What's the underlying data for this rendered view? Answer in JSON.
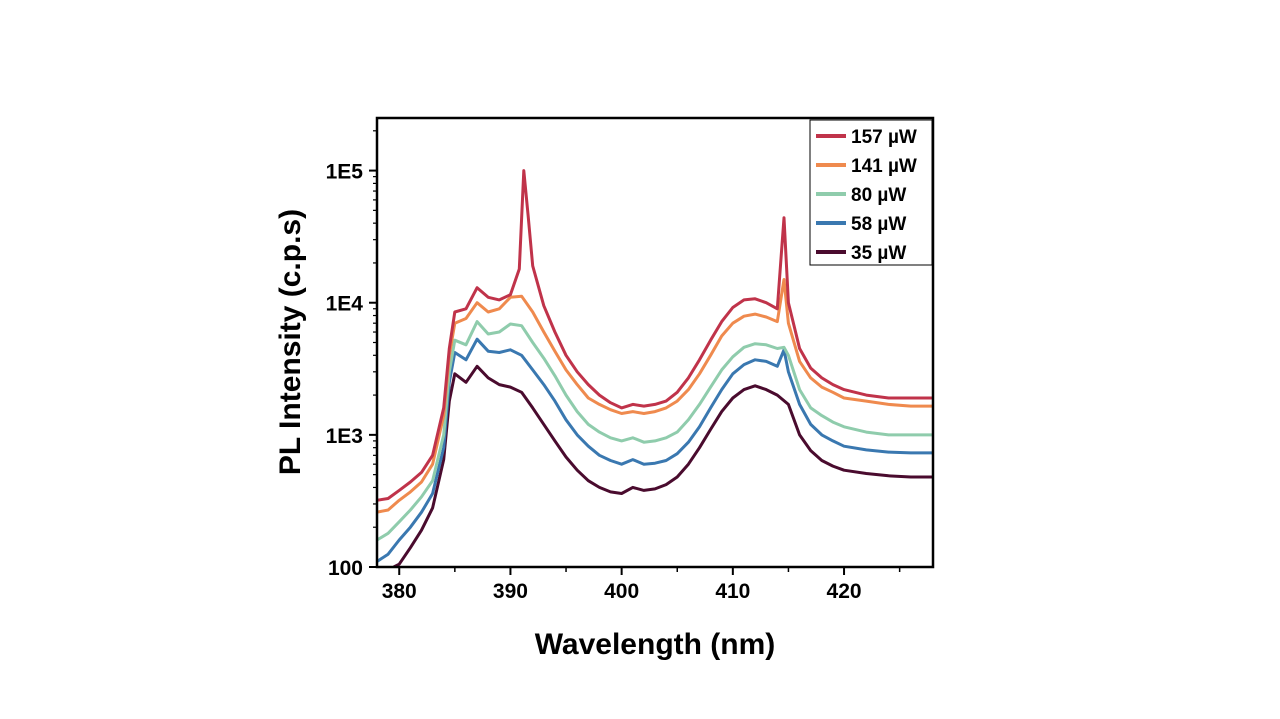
{
  "chart_data": {
    "type": "line",
    "title": "",
    "xlabel": "Wavelength (nm)",
    "ylabel": "PL Intensity (c.p.s)",
    "xlim": [
      378,
      428
    ],
    "ylim": [
      100,
      250000
    ],
    "yscale": "log",
    "grid": false,
    "legend_position": "top-right",
    "x_ticks": [
      380,
      390,
      400,
      410,
      420
    ],
    "x_tick_labels": [
      "380",
      "390",
      "400",
      "410",
      "420"
    ],
    "y_ticks": [
      100,
      1000,
      10000,
      100000
    ],
    "y_tick_labels": [
      "100",
      "1E3",
      "1E4",
      "1E5"
    ],
    "series": [
      {
        "name": "157 µW",
        "color": "#c0334a",
        "points": [
          [
            378,
            320
          ],
          [
            379,
            330
          ],
          [
            380,
            380
          ],
          [
            381,
            440
          ],
          [
            382,
            520
          ],
          [
            383,
            700
          ],
          [
            384,
            1600
          ],
          [
            384.5,
            4500
          ],
          [
            385,
            8500
          ],
          [
            386,
            9000
          ],
          [
            387,
            13000
          ],
          [
            388,
            11000
          ],
          [
            389,
            10500
          ],
          [
            390,
            11500
          ],
          [
            390.8,
            18000
          ],
          [
            391.2,
            100000
          ],
          [
            391.6,
            45000
          ],
          [
            392,
            19000
          ],
          [
            393,
            9500
          ],
          [
            394,
            6000
          ],
          [
            395,
            4000
          ],
          [
            396,
            3000
          ],
          [
            397,
            2400
          ],
          [
            398,
            2000
          ],
          [
            399,
            1750
          ],
          [
            400,
            1600
          ],
          [
            401,
            1700
          ],
          [
            402,
            1650
          ],
          [
            403,
            1700
          ],
          [
            404,
            1800
          ],
          [
            405,
            2100
          ],
          [
            406,
            2700
          ],
          [
            407,
            3700
          ],
          [
            408,
            5200
          ],
          [
            409,
            7200
          ],
          [
            410,
            9200
          ],
          [
            411,
            10500
          ],
          [
            412,
            10700
          ],
          [
            413,
            10000
          ],
          [
            414,
            9000
          ],
          [
            414.6,
            44000
          ],
          [
            415,
            10000
          ],
          [
            416,
            4500
          ],
          [
            417,
            3200
          ],
          [
            418,
            2700
          ],
          [
            419,
            2400
          ],
          [
            420,
            2200
          ],
          [
            422,
            2000
          ],
          [
            424,
            1900
          ],
          [
            426,
            1900
          ],
          [
            428,
            1900
          ]
        ]
      },
      {
        "name": "141 µW",
        "color": "#ef8a4e",
        "points": [
          [
            378,
            260
          ],
          [
            379,
            270
          ],
          [
            380,
            320
          ],
          [
            381,
            370
          ],
          [
            382,
            440
          ],
          [
            383,
            600
          ],
          [
            384,
            1400
          ],
          [
            384.5,
            4000
          ],
          [
            385,
            7000
          ],
          [
            386,
            7600
          ],
          [
            387,
            10000
          ],
          [
            388,
            8500
          ],
          [
            389,
            9000
          ],
          [
            390,
            11000
          ],
          [
            391,
            11200
          ],
          [
            392,
            8500
          ],
          [
            393,
            6000
          ],
          [
            394,
            4300
          ],
          [
            395,
            3100
          ],
          [
            396,
            2400
          ],
          [
            397,
            1900
          ],
          [
            398,
            1700
          ],
          [
            399,
            1550
          ],
          [
            400,
            1450
          ],
          [
            401,
            1500
          ],
          [
            402,
            1450
          ],
          [
            403,
            1500
          ],
          [
            404,
            1600
          ],
          [
            405,
            1800
          ],
          [
            406,
            2200
          ],
          [
            407,
            2900
          ],
          [
            408,
            4000
          ],
          [
            409,
            5600
          ],
          [
            410,
            7000
          ],
          [
            411,
            7900
          ],
          [
            412,
            8200
          ],
          [
            413,
            7800
          ],
          [
            414,
            7200
          ],
          [
            414.6,
            15000
          ],
          [
            415,
            7000
          ],
          [
            416,
            3600
          ],
          [
            417,
            2700
          ],
          [
            418,
            2300
          ],
          [
            419,
            2100
          ],
          [
            420,
            1900
          ],
          [
            422,
            1800
          ],
          [
            424,
            1700
          ],
          [
            426,
            1650
          ],
          [
            428,
            1650
          ]
        ]
      },
      {
        "name": "80 µW",
        "color": "#8fccac",
        "points": [
          [
            378,
            160
          ],
          [
            379,
            180
          ],
          [
            380,
            220
          ],
          [
            381,
            270
          ],
          [
            382,
            340
          ],
          [
            383,
            450
          ],
          [
            384,
            1000
          ],
          [
            384.5,
            3000
          ],
          [
            385,
            5200
          ],
          [
            386,
            4800
          ],
          [
            387,
            7200
          ],
          [
            388,
            5800
          ],
          [
            389,
            6000
          ],
          [
            390,
            6900
          ],
          [
            391,
            6700
          ],
          [
            392,
            5000
          ],
          [
            393,
            3800
          ],
          [
            394,
            2800
          ],
          [
            395,
            2000
          ],
          [
            396,
            1500
          ],
          [
            397,
            1200
          ],
          [
            398,
            1050
          ],
          [
            399,
            950
          ],
          [
            400,
            900
          ],
          [
            401,
            950
          ],
          [
            402,
            880
          ],
          [
            403,
            900
          ],
          [
            404,
            950
          ],
          [
            405,
            1050
          ],
          [
            406,
            1300
          ],
          [
            407,
            1700
          ],
          [
            408,
            2300
          ],
          [
            409,
            3100
          ],
          [
            410,
            3900
          ],
          [
            411,
            4600
          ],
          [
            412,
            4900
          ],
          [
            413,
            4800
          ],
          [
            414,
            4500
          ],
          [
            414.6,
            4600
          ],
          [
            415,
            4000
          ],
          [
            416,
            2200
          ],
          [
            417,
            1600
          ],
          [
            418,
            1400
          ],
          [
            419,
            1250
          ],
          [
            420,
            1150
          ],
          [
            422,
            1050
          ],
          [
            424,
            1000
          ],
          [
            426,
            1000
          ],
          [
            428,
            1000
          ]
        ]
      },
      {
        "name": "58 µW",
        "color": "#3a78b0",
        "points": [
          [
            378,
            110
          ],
          [
            379,
            125
          ],
          [
            380,
            160
          ],
          [
            381,
            200
          ],
          [
            382,
            260
          ],
          [
            383,
            360
          ],
          [
            384,
            800
          ],
          [
            384.5,
            2500
          ],
          [
            385,
            4200
          ],
          [
            386,
            3700
          ],
          [
            387,
            5300
          ],
          [
            388,
            4300
          ],
          [
            389,
            4200
          ],
          [
            390,
            4400
          ],
          [
            391,
            4000
          ],
          [
            392,
            3100
          ],
          [
            393,
            2400
          ],
          [
            394,
            1800
          ],
          [
            395,
            1300
          ],
          [
            396,
            1000
          ],
          [
            397,
            820
          ],
          [
            398,
            700
          ],
          [
            399,
            640
          ],
          [
            400,
            600
          ],
          [
            401,
            650
          ],
          [
            402,
            600
          ],
          [
            403,
            610
          ],
          [
            404,
            640
          ],
          [
            405,
            720
          ],
          [
            406,
            880
          ],
          [
            407,
            1150
          ],
          [
            408,
            1600
          ],
          [
            409,
            2200
          ],
          [
            410,
            2900
          ],
          [
            411,
            3400
          ],
          [
            412,
            3700
          ],
          [
            413,
            3600
          ],
          [
            414,
            3300
          ],
          [
            414.6,
            4400
          ],
          [
            415,
            3000
          ],
          [
            416,
            1700
          ],
          [
            417,
            1200
          ],
          [
            418,
            1000
          ],
          [
            419,
            900
          ],
          [
            420,
            820
          ],
          [
            422,
            770
          ],
          [
            424,
            740
          ],
          [
            426,
            730
          ],
          [
            428,
            730
          ]
        ]
      },
      {
        "name": "35 µW",
        "color": "#4a0b2e",
        "points": [
          [
            379.5,
            100
          ],
          [
            380,
            105
          ],
          [
            381,
            140
          ],
          [
            382,
            190
          ],
          [
            383,
            280
          ],
          [
            384,
            650
          ],
          [
            384.5,
            1800
          ],
          [
            385,
            2900
          ],
          [
            386,
            2500
          ],
          [
            387,
            3300
          ],
          [
            388,
            2700
          ],
          [
            389,
            2400
          ],
          [
            390,
            2300
          ],
          [
            391,
            2100
          ],
          [
            392,
            1600
          ],
          [
            393,
            1200
          ],
          [
            394,
            900
          ],
          [
            395,
            680
          ],
          [
            396,
            540
          ],
          [
            397,
            450
          ],
          [
            398,
            400
          ],
          [
            399,
            370
          ],
          [
            400,
            360
          ],
          [
            401,
            400
          ],
          [
            402,
            380
          ],
          [
            403,
            390
          ],
          [
            404,
            420
          ],
          [
            405,
            480
          ],
          [
            406,
            600
          ],
          [
            407,
            800
          ],
          [
            408,
            1100
          ],
          [
            409,
            1500
          ],
          [
            410,
            1900
          ],
          [
            411,
            2200
          ],
          [
            412,
            2350
          ],
          [
            413,
            2200
          ],
          [
            414,
            2000
          ],
          [
            415,
            1700
          ],
          [
            416,
            1000
          ],
          [
            417,
            760
          ],
          [
            418,
            640
          ],
          [
            419,
            580
          ],
          [
            420,
            540
          ],
          [
            422,
            510
          ],
          [
            424,
            490
          ],
          [
            426,
            480
          ],
          [
            428,
            480
          ]
        ]
      }
    ]
  }
}
